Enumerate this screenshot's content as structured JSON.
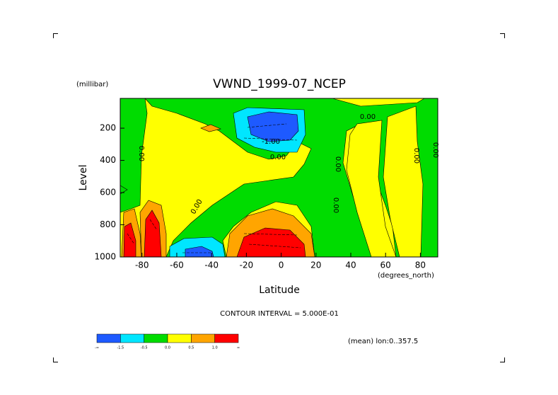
{
  "chart_data": {
    "type": "contour",
    "title": "VWND_1999-07_NCEP",
    "y_unit": "(millibar)",
    "y_label": "Level",
    "x_label": "Latitude",
    "x_unit": "(degrees_north)",
    "xlim": [
      -92.5,
      90
    ],
    "xticks": [
      -80,
      -60,
      -40,
      -20,
      0,
      20,
      40,
      60,
      80
    ],
    "ylim": [
      1000,
      15
    ],
    "yticks": [
      200,
      400,
      600,
      800,
      1000
    ],
    "contour_interval": "CONTOUR INTERVAL = 5.000E-01",
    "footnote": "(mean) lon:0..357.5",
    "contour_labels": [
      "0.00",
      "-1.00",
      "0.00",
      "0.00",
      "0.00",
      "0.00",
      "0.00",
      "0.00",
      "0.00"
    ],
    "colorbar": {
      "colors": [
        "#1e5aff",
        "#00e6ff",
        "#00dc00",
        "#ffff00",
        "#ffa500",
        "#ff0000"
      ],
      "labels": [
        "-∞",
        "-1.5",
        "-0.5",
        "0.0",
        "0.5",
        "1.0",
        "∞"
      ]
    }
  }
}
